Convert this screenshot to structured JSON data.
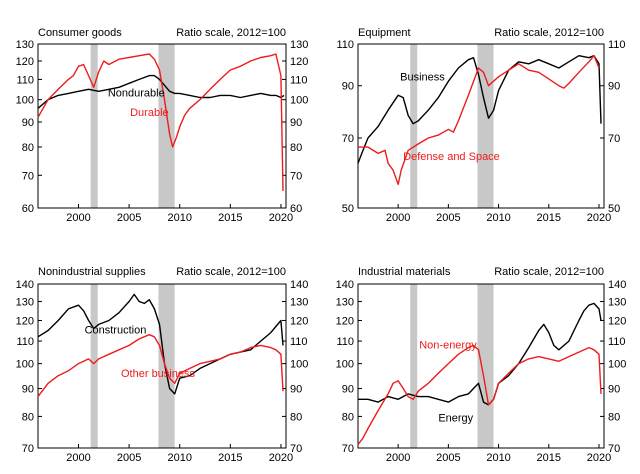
{
  "colors": {
    "black_series": "#000000",
    "red_series": "#ee1c1c",
    "recession": "#c8c8c8"
  },
  "chart_data": [
    {
      "type": "line",
      "title": "Consumer goods",
      "subtitle": "Ratio scale, 2012=100",
      "log_scale": true,
      "xlim": [
        1996.0,
        2020.5
      ],
      "ylim": [
        60,
        130
      ],
      "yticks": [
        60,
        70,
        80,
        90,
        100,
        110,
        120,
        130
      ],
      "xticks": [
        2000,
        2005,
        2010,
        2015,
        2020
      ],
      "recessions": [
        [
          2001.2,
          2001.9
        ],
        [
          2007.9,
          2009.5
        ]
      ],
      "series": [
        {
          "name": "Nondurable",
          "color": "black",
          "x": [
            1996.0,
            1997.0,
            1998.0,
            1999.0,
            2000.0,
            2001.0,
            2002.0,
            2003.0,
            2004.0,
            2005.0,
            2006.0,
            2007.0,
            2007.5,
            2008.0,
            2008.5,
            2009.0,
            2009.5,
            2010.0,
            2011.0,
            2012.0,
            2013.0,
            2014.0,
            2015.0,
            2016.0,
            2017.0,
            2018.0,
            2019.0,
            2019.5,
            2020.0,
            2020.3
          ],
          "y": [
            96,
            100,
            102,
            103,
            104,
            105,
            104,
            105,
            106,
            108,
            110,
            112,
            112,
            110,
            107,
            104,
            103,
            103,
            102,
            101,
            101,
            102,
            102,
            101,
            102,
            103,
            102,
            102,
            101,
            102
          ]
        },
        {
          "name": "Durable",
          "color": "red",
          "x": [
            1996.0,
            1996.5,
            1997.0,
            1998.0,
            1999.0,
            1999.5,
            2000.0,
            2000.5,
            2001.0,
            2001.5,
            2002.0,
            2002.5,
            2003.0,
            2004.0,
            2005.0,
            2006.0,
            2007.0,
            2007.5,
            2008.0,
            2008.5,
            2009.0,
            2009.3,
            2009.7,
            2010.0,
            2010.5,
            2011.0,
            2012.0,
            2013.0,
            2014.0,
            2015.0,
            2016.0,
            2017.0,
            2018.0,
            2019.0,
            2019.5,
            2020.0,
            2020.2
          ],
          "y": [
            92,
            96,
            100,
            105,
            110,
            112,
            117,
            118,
            112,
            106,
            114,
            120,
            118,
            121,
            122,
            123,
            124,
            121,
            115,
            100,
            85,
            80,
            84,
            88,
            93,
            96,
            100,
            105,
            110,
            115,
            117,
            120,
            122,
            123,
            124,
            112,
            65
          ]
        }
      ],
      "labels": [
        {
          "text": "Nondurable",
          "x": 2002.9,
          "y": 101.5,
          "color": "black"
        },
        {
          "text": "Durable",
          "x": 2005.1,
          "y": 92.6,
          "color": "red"
        }
      ]
    },
    {
      "type": "line",
      "title": "Equipment",
      "subtitle": "Ratio scale, 2012=100",
      "log_scale": true,
      "xlim": [
        1996.0,
        2020.5
      ],
      "ylim": [
        50,
        110
      ],
      "yticks": [
        50,
        70,
        90,
        110
      ],
      "xticks": [
        2000,
        2005,
        2010,
        2015,
        2020
      ],
      "recessions": [
        [
          2001.2,
          2001.9
        ],
        [
          2007.9,
          2009.5
        ]
      ],
      "series": [
        {
          "name": "Business",
          "color": "black",
          "x": [
            1996.0,
            1996.5,
            1997.0,
            1998.0,
            1999.0,
            2000.0,
            2000.5,
            2001.0,
            2001.5,
            2002.0,
            2003.0,
            2004.0,
            2005.0,
            2006.0,
            2007.0,
            2007.5,
            2008.0,
            2008.5,
            2009.0,
            2009.5,
            2010.0,
            2011.0,
            2012.0,
            2013.0,
            2014.0,
            2015.0,
            2016.0,
            2017.0,
            2018.0,
            2019.0,
            2019.5,
            2020.0,
            2020.2
          ],
          "y": [
            62,
            66,
            70,
            74,
            80,
            86,
            85,
            78,
            75,
            76,
            80,
            85,
            92,
            98,
            102,
            103,
            95,
            85,
            77,
            80,
            88,
            97,
            101,
            100,
            102,
            100,
            98,
            101,
            104,
            103,
            104,
            100,
            75
          ]
        },
        {
          "name": "Defense and Space",
          "color": "red",
          "x": [
            1996.0,
            1997.0,
            1998.0,
            1998.7,
            1999.0,
            1999.5,
            2000.0,
            2000.3,
            2001.0,
            2002.0,
            2003.0,
            2004.0,
            2005.0,
            2005.5,
            2006.0,
            2007.0,
            2008.0,
            2008.5,
            2009.0,
            2010.0,
            2011.0,
            2012.0,
            2013.0,
            2014.0,
            2015.0,
            2016.0,
            2016.5,
            2017.0,
            2018.0,
            2019.0,
            2019.5,
            2020.0
          ],
          "y": [
            67,
            67,
            65,
            66,
            62,
            60,
            56,
            60,
            66,
            68,
            70,
            71,
            73,
            72,
            76,
            86,
            98,
            96,
            90,
            94,
            97,
            100,
            97,
            96,
            93,
            90,
            89,
            91,
            96,
            101,
            104,
            98
          ]
        }
      ],
      "labels": [
        {
          "text": "Business",
          "x": 2000.2,
          "y": 92.4,
          "color": "black"
        },
        {
          "text": "Defense and Space",
          "x": 2000.5,
          "y": 63.0,
          "color": "red"
        }
      ]
    },
    {
      "type": "line",
      "title": "Nonindustrial supplies",
      "subtitle": "Ratio scale, 2012=100",
      "log_scale": true,
      "xlim": [
        1996.0,
        2020.5
      ],
      "ylim": [
        70,
        140
      ],
      "yticks": [
        70,
        80,
        90,
        100,
        110,
        120,
        130,
        140
      ],
      "xticks": [
        2000,
        2005,
        2010,
        2015,
        2020
      ],
      "recessions": [
        [
          2001.2,
          2001.9
        ],
        [
          2007.9,
          2009.5
        ]
      ],
      "series": [
        {
          "name": "Construction",
          "color": "black",
          "x": [
            1996.0,
            1997.0,
            1998.0,
            1999.0,
            2000.0,
            2000.5,
            2001.0,
            2001.5,
            2002.0,
            2003.0,
            2004.0,
            2005.0,
            2005.5,
            2006.0,
            2006.5,
            2007.0,
            2007.5,
            2008.0,
            2008.5,
            2009.0,
            2009.5,
            2010.0,
            2011.0,
            2012.0,
            2013.0,
            2014.0,
            2015.0,
            2016.0,
            2017.0,
            2018.0,
            2019.0,
            2019.5,
            2020.0,
            2020.2
          ],
          "y": [
            112,
            115,
            120,
            126,
            128,
            125,
            120,
            116,
            118,
            120,
            124,
            130,
            134,
            130,
            129,
            131,
            126,
            118,
            100,
            90,
            88,
            94,
            95,
            98,
            100,
            102,
            104,
            105,
            106,
            110,
            114,
            117,
            120,
            108
          ]
        },
        {
          "name": "Other business",
          "color": "red",
          "x": [
            1996.0,
            1997.0,
            1998.0,
            1999.0,
            2000.0,
            2001.0,
            2001.5,
            2002.0,
            2003.0,
            2004.0,
            2005.0,
            2006.0,
            2007.0,
            2007.5,
            2008.0,
            2008.5,
            2009.0,
            2009.5,
            2010.0,
            2011.0,
            2012.0,
            2013.0,
            2014.0,
            2015.0,
            2016.0,
            2017.0,
            2018.0,
            2019.0,
            2019.5,
            2020.0,
            2020.2
          ],
          "y": [
            87,
            92,
            95,
            97,
            100,
            102,
            100,
            102,
            104,
            106,
            108,
            111,
            113,
            112,
            108,
            100,
            94,
            92,
            96,
            98,
            100,
            101,
            102,
            104,
            105,
            107,
            108,
            107,
            106,
            104,
            89
          ]
        }
      ],
      "labels": [
        {
          "text": "Construction",
          "x": 2000.6,
          "y": 113.5,
          "color": "black"
        },
        {
          "text": "Other business",
          "x": 2004.2,
          "y": 94.5,
          "color": "red"
        }
      ]
    },
    {
      "type": "line",
      "title": "Industrial materials",
      "subtitle": "Ratio scale, 2012=100",
      "log_scale": true,
      "xlim": [
        1996.0,
        2020.5
      ],
      "ylim": [
        70,
        140
      ],
      "yticks": [
        70,
        80,
        90,
        100,
        110,
        120,
        130,
        140
      ],
      "xticks": [
        2000,
        2005,
        2010,
        2015,
        2020
      ],
      "recessions": [
        [
          2001.2,
          2001.9
        ],
        [
          2007.9,
          2009.5
        ]
      ],
      "series": [
        {
          "name": "Energy",
          "color": "black",
          "x": [
            1996.0,
            1997.0,
            1998.0,
            1999.0,
            2000.0,
            2001.0,
            2002.0,
            2003.0,
            2004.0,
            2005.0,
            2006.0,
            2007.0,
            2007.5,
            2008.0,
            2008.5,
            2009.0,
            2009.5,
            2010.0,
            2011.0,
            2012.0,
            2013.0,
            2014.0,
            2014.5,
            2015.0,
            2015.5,
            2016.0,
            2017.0,
            2018.0,
            2018.5,
            2019.0,
            2019.5,
            2020.0,
            2020.2
          ],
          "y": [
            86,
            86,
            85,
            87,
            86,
            88,
            87,
            87,
            86,
            85,
            87,
            88,
            90,
            92,
            85,
            84,
            86,
            92,
            95,
            100,
            107,
            115,
            118,
            114,
            108,
            106,
            110,
            120,
            125,
            128,
            129,
            126,
            120
          ]
        },
        {
          "name": "Non-energy",
          "color": "red",
          "x": [
            1996.0,
            1996.5,
            1997.0,
            1998.0,
            1999.0,
            1999.5,
            2000.0,
            2000.5,
            2001.0,
            2001.5,
            2002.0,
            2003.0,
            2004.0,
            2005.0,
            2006.0,
            2007.0,
            2007.5,
            2008.0,
            2008.5,
            2009.0,
            2009.5,
            2010.0,
            2011.0,
            2012.0,
            2013.0,
            2014.0,
            2015.0,
            2016.0,
            2017.0,
            2018.0,
            2019.0,
            2019.5,
            2020.0,
            2020.2
          ],
          "y": [
            71,
            73,
            76,
            82,
            88,
            92,
            93,
            90,
            87,
            86,
            89,
            92,
            96,
            100,
            104,
            107,
            108,
            106,
            95,
            84,
            86,
            92,
            96,
            100,
            102,
            103,
            102,
            101,
            103,
            105,
            107,
            106,
            104,
            88
          ]
        }
      ],
      "labels": [
        {
          "text": "Non-energy",
          "x": 2002.1,
          "y": 106.5,
          "color": "red"
        },
        {
          "text": "Energy",
          "x": 2004.0,
          "y": 78.3,
          "color": "black"
        }
      ]
    }
  ]
}
